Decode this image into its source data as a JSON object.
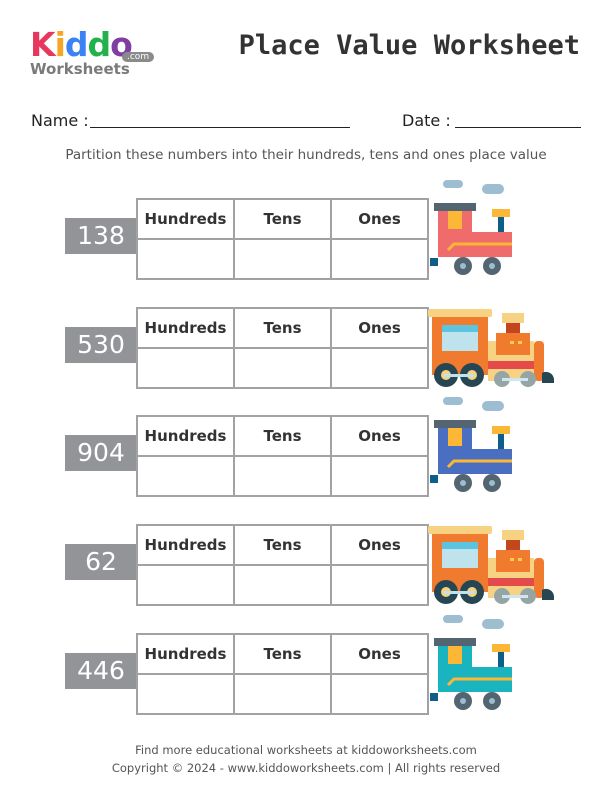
{
  "logo": {
    "kiddo": [
      "K",
      "i",
      "d",
      "d",
      "o"
    ],
    "worksheets": "Worksheets",
    "com": ".com",
    "colors": [
      "#e8375c",
      "#f5a623",
      "#3b82f6",
      "#22b14c",
      "#7e3fa1"
    ]
  },
  "title": "Place Value Worksheet",
  "name_label": "Name :",
  "date_label": "Date :",
  "instruction": "Partition these numbers into their hundreds, tens and ones place value",
  "headers": [
    "Hundreds",
    "Tens",
    "Ones"
  ],
  "rows": [
    {
      "number": "138",
      "train": "small",
      "color": "#f06b6b"
    },
    {
      "number": "530",
      "train": "orange",
      "color": "#f07b2f"
    },
    {
      "number": "904",
      "train": "small",
      "color": "#4a6fc0"
    },
    {
      "number": "62",
      "train": "orange",
      "color": "#f07b2f"
    },
    {
      "number": "446",
      "train": "small",
      "color": "#1ab3c0"
    }
  ],
  "footer": {
    "line1": "Find more educational worksheets at kiddoworksheets.com",
    "line2": "Copyright © 2024 - www.kiddoworksheets.com  |  All rights reserved"
  }
}
